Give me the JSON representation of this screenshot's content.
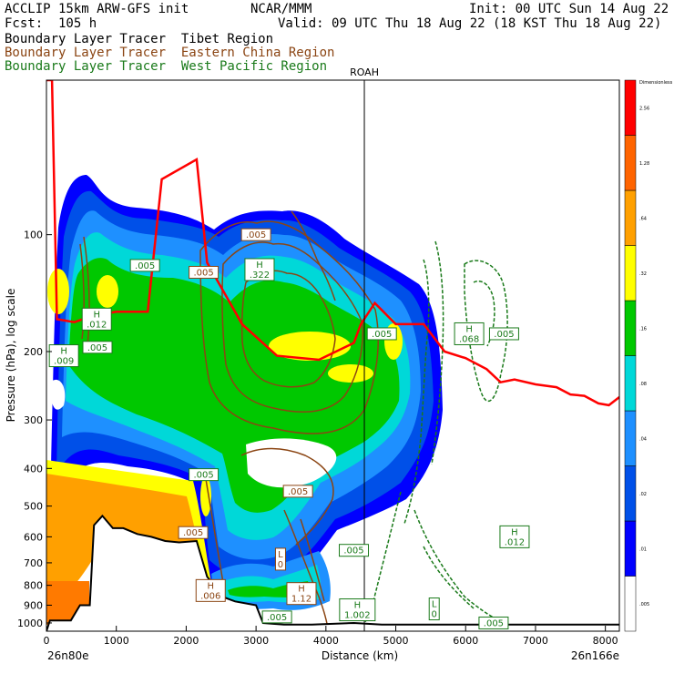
{
  "header": {
    "model": "ACCLIP 15km ARW-GFS init",
    "org": "NCAR/MMM",
    "init": "Init: 00 UTC Sun 14 Aug 22",
    "fcst": "Fcst:  105 h",
    "valid": "Valid: 09 UTC Thu 18 Aug 22 (18 KST Thu 18 Aug 22)",
    "legend": [
      {
        "text": "Boundary Layer Tracer  Tibet Region",
        "color": "#000000"
      },
      {
        "text": "Boundary Layer Tracer  Eastern China Region",
        "color": "#8B4513"
      },
      {
        "text": "Boundary Layer Tracer  West Pacific Region",
        "color": "#1a7a1a"
      }
    ]
  },
  "chart_data": {
    "type": "cross-section",
    "xlabel": "Distance (km)",
    "ylabel": "Pressure (hPa), log scale",
    "xlim": [
      0,
      8200
    ],
    "ylim": [
      1050,
      40
    ],
    "log_y": true,
    "x_ticks": [
      0,
      1000,
      2000,
      3000,
      4000,
      5000,
      6000,
      7000,
      8000
    ],
    "y_ticks": [
      100,
      200,
      300,
      400,
      500,
      600,
      700,
      800,
      900,
      1000
    ],
    "left_end_label": "26n80e",
    "right_end_label": "26n166e",
    "marker": {
      "label": "ROAH",
      "x": 4550
    },
    "colorbar": {
      "title": "Dimensionless",
      "levels": [
        ".005",
        ".01",
        ".02",
        ".04",
        ".08",
        ".16",
        ".32",
        ".64",
        "1.28",
        "2.56"
      ],
      "colors": [
        "#ffffff",
        "#0000ff",
        "#0050e8",
        "#1e90ff",
        "#00d8d8",
        "#00c800",
        "#ffff00",
        "#ffa000",
        "#ff6400",
        "#ff0000"
      ]
    },
    "tropopause": [
      [
        0,
        40
      ],
      [
        80,
        40
      ],
      [
        150,
        165
      ],
      [
        400,
        168
      ],
      [
        650,
        162
      ],
      [
        1000,
        158
      ],
      [
        1450,
        158
      ],
      [
        1650,
        72
      ],
      [
        2150,
        64
      ],
      [
        2300,
        118
      ],
      [
        2800,
        170
      ],
      [
        3300,
        205
      ],
      [
        3900,
        210
      ],
      [
        4400,
        190
      ],
      [
        4500,
        170
      ],
      [
        4700,
        150
      ],
      [
        5000,
        170
      ],
      [
        5400,
        170
      ],
      [
        5700,
        200
      ],
      [
        6000,
        208
      ],
      [
        6300,
        222
      ],
      [
        6500,
        240
      ],
      [
        6700,
        236
      ],
      [
        7000,
        243
      ],
      [
        7300,
        247
      ],
      [
        7500,
        258
      ],
      [
        7700,
        260
      ],
      [
        7900,
        272
      ],
      [
        8050,
        275
      ],
      [
        8200,
        262
      ]
    ],
    "terrain": [
      [
        0,
        1050
      ],
      [
        50,
        985
      ],
      [
        350,
        985
      ],
      [
        480,
        900
      ],
      [
        620,
        900
      ],
      [
        680,
        560
      ],
      [
        800,
        530
      ],
      [
        950,
        570
      ],
      [
        1100,
        570
      ],
      [
        1300,
        590
      ],
      [
        1500,
        600
      ],
      [
        1700,
        615
      ],
      [
        1900,
        620
      ],
      [
        2150,
        615
      ],
      [
        2300,
        760
      ],
      [
        2450,
        820
      ],
      [
        2550,
        860
      ],
      [
        2700,
        880
      ],
      [
        3000,
        900
      ],
      [
        3100,
        1000
      ],
      [
        3400,
        1010
      ],
      [
        3800,
        1010
      ],
      [
        4400,
        1000
      ],
      [
        4800,
        1010
      ],
      [
        8200,
        1010
      ]
    ],
    "labels": [
      {
        "text": "H\n.012",
        "x": 720,
        "y": 165,
        "color": "#1a7a1a"
      },
      {
        "text": ".005",
        "x": 730,
        "y": 195,
        "color": "#1a7a1a"
      },
      {
        "text": "H\n.009",
        "x": 250,
        "y": 205,
        "color": "#1a7a1a"
      },
      {
        "text": ".005",
        "x": 1410,
        "y": 120,
        "color": "#1a7a1a"
      },
      {
        "text": ".005",
        "x": 2250,
        "y": 125,
        "color": "#8B4513"
      },
      {
        "text": "H\n.322",
        "x": 3050,
        "y": 123,
        "color": "#1a7a1a"
      },
      {
        "text": ".005",
        "x": 3000,
        "y": 100,
        "color": "#8B4513"
      },
      {
        "text": ".005",
        "x": 4800,
        "y": 180,
        "color": "#1a7a1a"
      },
      {
        "text": "H\n.068",
        "x": 6050,
        "y": 180,
        "color": "#1a7a1a"
      },
      {
        "text": ".005",
        "x": 6550,
        "y": 180,
        "color": "#1a7a1a"
      },
      {
        "text": ".005",
        "x": 2250,
        "y": 415,
        "color": "#1a7a1a"
      },
      {
        "text": ".005",
        "x": 3600,
        "y": 458,
        "color": "#8B4513"
      },
      {
        "text": ".005",
        "x": 2100,
        "y": 585,
        "color": "#8B4513"
      },
      {
        "text": "L\n0",
        "x": 3350,
        "y": 685,
        "color": "#8B4513"
      },
      {
        "text": ".005",
        "x": 4400,
        "y": 650,
        "color": "#1a7a1a"
      },
      {
        "text": "H\n.006",
        "x": 2350,
        "y": 825,
        "color": "#8B4513"
      },
      {
        "text": "H\n1.12",
        "x": 3650,
        "y": 840,
        "color": "#8B4513"
      },
      {
        "text": ".005",
        "x": 3300,
        "y": 965,
        "color": "#1a7a1a"
      },
      {
        "text": "H\n1.002",
        "x": 4450,
        "y": 925,
        "color": "#1a7a1a"
      },
      {
        "text": "L\n0",
        "x": 5550,
        "y": 920,
        "color": "#1a7a1a"
      },
      {
        "text": "H\n.012",
        "x": 6700,
        "y": 600,
        "color": "#1a7a1a"
      },
      {
        "text": ".005",
        "x": 6400,
        "y": 1000,
        "color": "#1a7a1a"
      }
    ]
  }
}
